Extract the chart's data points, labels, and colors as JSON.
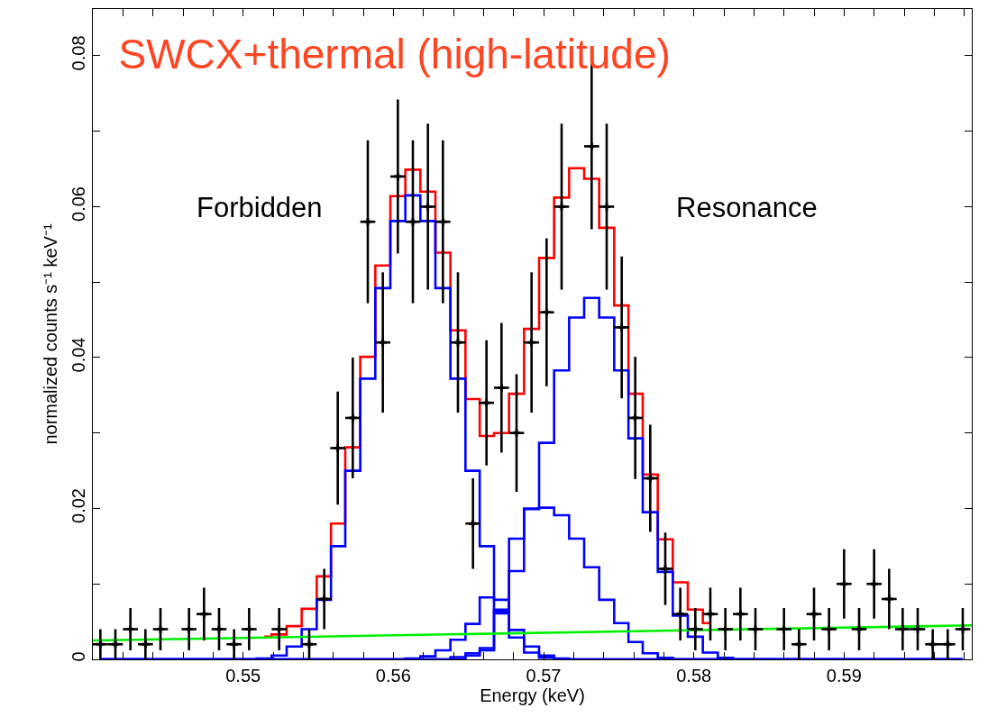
{
  "chart_data": {
    "type": "step",
    "title": "SWCX+thermal (high-latitude)",
    "xlabel": "Energy (keV)",
    "ylabel": "normalized counts s⁻¹ keV⁻¹",
    "annotations": [
      "Forbidden",
      "Resonance"
    ],
    "x": [
      0.5405,
      0.5415,
      0.5425,
      0.5435,
      0.5445,
      0.5455,
      0.5464,
      0.5474,
      0.5484,
      0.5494,
      0.5504,
      0.5514,
      0.5524,
      0.5534,
      0.5544,
      0.5554,
      0.5563,
      0.5573,
      0.5583,
      0.5593,
      0.5603,
      0.5613,
      0.5623,
      0.5633,
      0.5643,
      0.5653,
      0.5662,
      0.5672,
      0.5682,
      0.5692,
      0.5702,
      0.5712,
      0.5722,
      0.5732,
      0.5742,
      0.5752,
      0.5761,
      0.5771,
      0.5781,
      0.5791,
      0.5801,
      0.5811,
      0.5821,
      0.5831,
      0.5841,
      0.5851,
      0.586,
      0.587,
      0.588,
      0.589,
      0.59,
      0.591,
      0.592,
      0.593,
      0.5939,
      0.5949,
      0.5959,
      0.5969,
      0.5979
    ],
    "series": [
      {
        "color": "#ff0000",
        "values": [
          null,
          null,
          null,
          null,
          null,
          null,
          null,
          null,
          null,
          null,
          null,
          0.003,
          0.0033,
          0.0044,
          0.0067,
          0.011,
          0.018,
          0.0281,
          0.0401,
          0.0522,
          0.0614,
          0.0649,
          0.062,
          0.0539,
          0.0436,
          0.0345,
          0.0296,
          0.03,
          0.0352,
          0.0438,
          0.0532,
          0.0612,
          0.0651,
          0.0637,
          0.0572,
          0.0469,
          0.0352,
          0.0245,
          0.0159,
          0.0102,
          0.0066,
          0.0048,
          null,
          null,
          null,
          null,
          null,
          null,
          null,
          null,
          null,
          null,
          null,
          null,
          null,
          null,
          null,
          null,
          null
        ]
      },
      {
        "color": "#0000ff",
        "values": [
          0,
          0,
          0,
          0,
          0,
          0,
          0,
          0,
          0,
          0,
          0,
          0.0001,
          0.0005,
          0.0017,
          0.004,
          0.0079,
          0.015,
          0.025,
          0.0372,
          0.0492,
          0.0581,
          0.0615,
          0.0581,
          0.0492,
          0.0372,
          0.025,
          0.015,
          0.0079,
          0.0039,
          0.0017,
          0.0005,
          0.0001,
          0,
          0,
          0,
          0,
          0,
          0,
          0,
          0,
          0,
          0,
          0,
          0,
          0,
          0,
          0,
          0,
          0,
          0,
          0,
          0,
          0,
          0,
          0,
          0,
          0,
          0,
          0
        ]
      },
      {
        "color": "#0000ff",
        "values": [
          0,
          0,
          0,
          0,
          0,
          0,
          0,
          0,
          0,
          0,
          0,
          0,
          0,
          0,
          0,
          0,
          0,
          0,
          0,
          0,
          0,
          0.0001,
          0.0004,
          0.0012,
          0.0026,
          0.0047,
          0.0082,
          0.0063,
          0.0029,
          0.0009,
          0.0002,
          0,
          0,
          0,
          0,
          0,
          0,
          0,
          0,
          0,
          0,
          0,
          0,
          0,
          0,
          0,
          0,
          0,
          0,
          0,
          0,
          0,
          0,
          0,
          0,
          0,
          0,
          0,
          0
        ]
      },
      {
        "color": "#0000ff",
        "values": [
          0,
          0,
          0,
          0,
          0,
          0,
          0,
          0,
          0,
          0,
          0,
          0,
          0,
          0,
          0,
          0,
          0,
          0,
          0,
          0,
          0,
          0,
          0,
          0,
          0.0003,
          0.0008,
          0.0015,
          0.0066,
          0.016,
          0.02,
          0.0201,
          0.0191,
          0.016,
          0.0122,
          0.0079,
          0.0048,
          0.0023,
          0.0008,
          0.0002,
          0,
          0,
          0,
          0,
          0,
          0,
          0,
          0,
          0,
          0,
          0,
          0,
          0,
          0,
          0,
          0,
          0,
          0,
          0,
          0
        ]
      },
      {
        "color": "#0000ff",
        "values": [
          0,
          0,
          0,
          0,
          0,
          0,
          0,
          0,
          0,
          0,
          0,
          0,
          0,
          0,
          0,
          0,
          0,
          0,
          0,
          0,
          0,
          0,
          0,
          0,
          0,
          0.0005,
          0.0012,
          0.0061,
          0.0117,
          0.0199,
          0.0287,
          0.0383,
          0.0453,
          0.0479,
          0.0453,
          0.0383,
          0.0293,
          0.0195,
          0.0116,
          0.0058,
          0.003,
          0.0009,
          0.0002,
          0,
          0,
          0,
          0,
          0,
          0,
          0,
          0,
          0,
          0,
          0,
          0,
          0,
          0,
          0,
          0
        ]
      },
      {
        "type": "line",
        "color": "#00ee00",
        "x": [
          0.54,
          0.5985
        ],
        "values": [
          0.0025,
          0.0045
        ]
      },
      {
        "type": "scatter",
        "color": "#000000",
        "marker": "cross",
        "values": [
          0.002,
          0.002,
          0.004,
          0.002,
          0.004,
          null,
          0.004,
          0.006,
          0.004,
          0.002,
          0.004,
          null,
          0.004,
          null,
          0.002,
          0.008,
          0.028,
          0.032,
          0.058,
          0.042,
          0.064,
          0.058,
          0.06,
          0.058,
          0.042,
          0.018,
          0.034,
          0.036,
          0.03,
          0.042,
          0.046,
          0.06,
          null,
          0.068,
          0.06,
          0.044,
          0.032,
          0.024,
          0.012,
          0.006,
          0.004,
          0.006,
          0.004,
          0.006,
          0.004,
          null,
          0.004,
          0.002,
          0.006,
          0.004,
          0.01,
          0.004,
          0.01,
          0.008,
          0.004,
          0.004,
          0.002,
          0.002,
          0.004
        ],
        "errors": [
          0.002,
          0.002,
          0.0028,
          0.002,
          0.0028,
          null,
          0.0028,
          0.0035,
          0.0028,
          0.002,
          0.0028,
          null,
          0.0028,
          null,
          0.002,
          0.004,
          0.0075,
          0.008,
          0.0108,
          0.0093,
          0.0102,
          0.0108,
          0.011,
          0.0108,
          0.0093,
          0.006,
          0.0083,
          0.0086,
          0.0078,
          0.0093,
          0.0098,
          0.011,
          null,
          0.011,
          0.011,
          0.0094,
          0.0081,
          0.0071,
          0.0048,
          0.0035,
          0.0028,
          0.0035,
          0.0028,
          0.0035,
          0.0028,
          null,
          0.0028,
          0.002,
          0.0035,
          0.0028,
          0.0046,
          0.0028,
          0.0046,
          0.004,
          0.0028,
          0.0028,
          0.002,
          0.002,
          0.0028
        ],
        "xerrors": [
          0.0005,
          0.0005,
          0.0005,
          0.0005,
          0.0005,
          null,
          0.0005,
          0.0005,
          0.0005,
          0.0005,
          0.0005,
          null,
          0.0005,
          null,
          0.0005,
          0.0005,
          0.0005,
          0.0005,
          0.0005,
          0.0005,
          0.0005,
          0.0005,
          0.0005,
          0.0005,
          0.0005,
          0.0005,
          0.0005,
          0.0005,
          0.0005,
          0.0005,
          0.0005,
          0.0005,
          null,
          0.0005,
          0.0005,
          0.0005,
          0.0005,
          0.0005,
          0.0005,
          0.0005,
          0.0005,
          0.0005,
          0.0005,
          0.0005,
          0.0005,
          null,
          0.0005,
          0.0005,
          0.0005,
          0.0005,
          0.0005,
          0.0005,
          0.0005,
          0.0005,
          0.0005,
          0.0005,
          0.0005,
          0.0005,
          0.0005
        ]
      }
    ],
    "xlim": [
      0.54,
      0.5985
    ],
    "xticks": [
      {
        "value": 0.542,
        "label": null
      },
      {
        "value": 0.544,
        "label": null
      },
      {
        "value": 0.546,
        "label": null
      },
      {
        "value": 0.548,
        "label": null
      },
      0.55,
      {
        "value": 0.552,
        "label": null
      },
      {
        "value": 0.554,
        "label": null
      },
      {
        "value": 0.556,
        "label": null
      },
      {
        "value": 0.558,
        "label": null
      },
      0.56,
      {
        "value": 0.562,
        "label": null
      },
      {
        "value": 0.564,
        "label": null
      },
      {
        "value": 0.566,
        "label": null
      },
      {
        "value": 0.568,
        "label": null
      },
      0.57,
      {
        "value": 0.572,
        "label": null
      },
      {
        "value": 0.574,
        "label": null
      },
      {
        "value": 0.576,
        "label": null
      },
      {
        "value": 0.578,
        "label": null
      },
      0.58,
      {
        "value": 0.582,
        "label": null
      },
      {
        "value": 0.584,
        "label": null
      },
      {
        "value": 0.586,
        "label": null
      },
      {
        "value": 0.588,
        "label": null
      },
      0.59,
      {
        "value": 0.592,
        "label": null
      },
      {
        "value": 0.594,
        "label": null
      },
      {
        "value": 0.596,
        "label": null
      },
      {
        "value": 0.598,
        "label": null
      }
    ],
    "ylim": [
      0,
      0.0862
    ],
    "yticks": [
      0,
      {
        "value": 0.01,
        "label": null
      },
      0.02,
      {
        "value": 0.03,
        "label": null
      },
      0.04,
      {
        "value": 0.05,
        "label": null
      },
      0.06,
      {
        "value": 0.07,
        "label": null
      },
      0.08
    ]
  }
}
